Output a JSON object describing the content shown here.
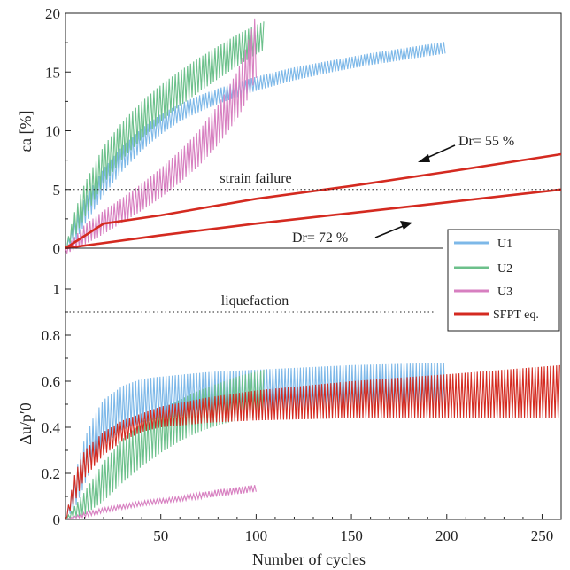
{
  "chart_data": [
    {
      "type": "line",
      "panel": "top",
      "ylabel": "εa [%]",
      "ylim": [
        0,
        20
      ],
      "xlim": [
        0,
        260
      ],
      "yticks": [
        "0",
        "5",
        "10",
        "15",
        "20"
      ],
      "grid": false,
      "reference_lines": [
        {
          "label": "strain failure",
          "y": 5,
          "style": "dotted"
        },
        {
          "label": "",
          "y": 0,
          "style": "solid"
        }
      ],
      "annotations": [
        {
          "text": "Dr= 55 %",
          "points_to": "SFPT eq. (upper curve)"
        },
        {
          "text": "Dr= 72 %",
          "points_to": "SFPT eq. (lower curve)"
        }
      ],
      "series": [
        {
          "name": "U1",
          "color": "#7db8e8",
          "style": "cyclic band",
          "x": [
            0,
            5,
            10,
            20,
            30,
            40,
            50,
            60,
            70,
            80,
            100,
            120,
            140,
            160,
            180,
            200
          ],
          "upper": [
            0,
            2.5,
            4.2,
            6.8,
            8.7,
            10.2,
            11.4,
            12.3,
            13.0,
            13.6,
            14.6,
            15.4,
            16.0,
            16.6,
            17.1,
            17.6
          ],
          "lower": [
            0,
            0.6,
            2.0,
            4.5,
            6.6,
            8.3,
            9.7,
            10.8,
            11.6,
            12.3,
            13.4,
            14.3,
            15.0,
            15.6,
            16.1,
            16.6
          ]
        },
        {
          "name": "U2",
          "color": "#6cc08b",
          "style": "cyclic band",
          "x": [
            0,
            5,
            10,
            20,
            30,
            40,
            50,
            60,
            70,
            80,
            90,
            100,
            104
          ],
          "upper": [
            0,
            3.2,
            5.5,
            8.7,
            10.8,
            12.5,
            13.9,
            15.1,
            16.2,
            17.2,
            18.2,
            19.0,
            19.3
          ],
          "lower": [
            0,
            1.0,
            2.6,
            5.5,
            7.6,
            9.3,
            10.8,
            12.1,
            13.3,
            14.4,
            15.5,
            16.5,
            16.9
          ]
        },
        {
          "name": "U3",
          "color": "#d77fc0",
          "style": "cyclic band",
          "x": [
            0,
            10,
            20,
            30,
            40,
            50,
            60,
            70,
            80,
            90,
            95,
            100
          ],
          "upper": [
            0,
            2.0,
            3.2,
            4.3,
            5.5,
            6.8,
            8.3,
            10.0,
            12.2,
            15.0,
            17.2,
            20.0
          ],
          "lower": [
            -0.5,
            0.3,
            1.2,
            2.2,
            3.2,
            4.3,
            5.6,
            7.0,
            8.8,
            11.0,
            12.5,
            14.5
          ]
        },
        {
          "name": "SFPT eq. (Dr= 55 %)",
          "color": "#d42a20",
          "style": "line",
          "x": [
            0,
            20,
            50,
            100,
            150,
            200,
            260
          ],
          "y": [
            0,
            2.1,
            2.8,
            4.2,
            5.3,
            6.5,
            8.0
          ]
        },
        {
          "name": "SFPT eq. (Dr= 72 %)",
          "color": "#d42a20",
          "style": "line",
          "x": [
            0,
            50,
            100,
            150,
            200,
            260
          ],
          "y": [
            0,
            1.1,
            2.1,
            3.0,
            3.9,
            5.0
          ]
        }
      ]
    },
    {
      "type": "line",
      "panel": "bottom",
      "xlabel": "Number of cycles",
      "ylabel": "Δu/p′0",
      "ylim": [
        0,
        1.0
      ],
      "xlim": [
        0,
        260
      ],
      "yticks": [
        "0",
        "0.2",
        "0.4",
        "0.6",
        "0.8",
        "1"
      ],
      "xticks": [
        "50",
        "100",
        "150",
        "200",
        "250"
      ],
      "grid": false,
      "reference_lines": [
        {
          "label": "liquefaction",
          "y": 0.9,
          "style": "dotted"
        }
      ],
      "series": [
        {
          "name": "U1",
          "color": "#7db8e8",
          "style": "cyclic band",
          "x": [
            0,
            5,
            10,
            15,
            20,
            30,
            40,
            50,
            75,
            100,
            150,
            200
          ],
          "upper": [
            0,
            0.2,
            0.35,
            0.45,
            0.52,
            0.58,
            0.61,
            0.62,
            0.64,
            0.65,
            0.67,
            0.68
          ],
          "lower": [
            0,
            0.05,
            0.15,
            0.25,
            0.32,
            0.39,
            0.42,
            0.44,
            0.46,
            0.47,
            0.48,
            0.48
          ]
        },
        {
          "name": "U2",
          "color": "#6cc08b",
          "style": "cyclic band",
          "x": [
            0,
            10,
            20,
            30,
            40,
            50,
            60,
            70,
            80,
            90,
            104
          ],
          "upper": [
            0,
            0.12,
            0.25,
            0.35,
            0.42,
            0.48,
            0.52,
            0.56,
            0.59,
            0.62,
            0.65
          ],
          "lower": [
            0,
            0.02,
            0.08,
            0.16,
            0.23,
            0.29,
            0.34,
            0.38,
            0.41,
            0.43,
            0.45
          ]
        },
        {
          "name": "U3",
          "color": "#d77fc0",
          "style": "cyclic band",
          "x": [
            0,
            10,
            20,
            40,
            60,
            80,
            100
          ],
          "upper": [
            0,
            0.03,
            0.05,
            0.08,
            0.1,
            0.13,
            0.15
          ],
          "lower": [
            0,
            0.01,
            0.03,
            0.06,
            0.08,
            0.1,
            0.12
          ]
        },
        {
          "name": "SFPT eq.",
          "color": "#d42a20",
          "style": "cyclic band",
          "x": [
            0,
            5,
            10,
            20,
            30,
            40,
            50,
            75,
            100,
            150,
            200,
            260
          ],
          "upper": [
            0,
            0.2,
            0.3,
            0.38,
            0.43,
            0.46,
            0.49,
            0.53,
            0.56,
            0.6,
            0.63,
            0.67
          ],
          "lower": [
            0,
            0.08,
            0.18,
            0.28,
            0.34,
            0.38,
            0.4,
            0.42,
            0.43,
            0.44,
            0.44,
            0.44
          ]
        }
      ]
    }
  ],
  "legend": {
    "placement": "right, between panels",
    "items": [
      {
        "label": "U1",
        "color": "#7db8e8"
      },
      {
        "label": "U2",
        "color": "#6cc08b"
      },
      {
        "label": "U3",
        "color": "#d77fc0"
      },
      {
        "label": "SFPT eq.",
        "color": "#d42a20"
      }
    ]
  }
}
